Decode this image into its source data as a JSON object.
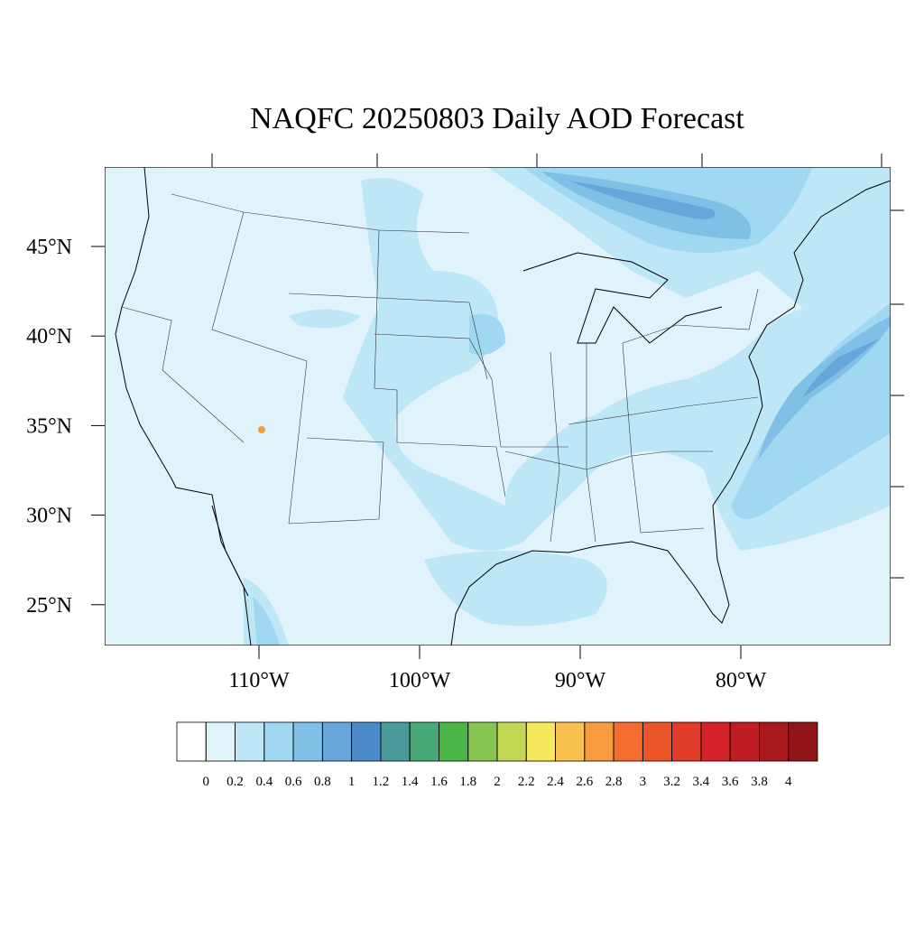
{
  "title": "NAQFC 20250803 Daily AOD Forecast",
  "lat_labels": [
    "45°N",
    "40°N",
    "35°N",
    "30°N",
    "25°N"
  ],
  "lon_labels": [
    "110°W",
    "100°W",
    "90°W",
    "80°W"
  ],
  "colorbar": {
    "levels": [
      0,
      0.2,
      0.4,
      0.6,
      0.8,
      1,
      1.2,
      1.4,
      1.6,
      1.8,
      2,
      2.2,
      2.4,
      2.6,
      2.8,
      3,
      3.2,
      3.4,
      3.6,
      3.8,
      4
    ],
    "colors": [
      "#ffffff",
      "#e0f3fb",
      "#bde6f7",
      "#a0d8f2",
      "#80bfe6",
      "#66a6db",
      "#4a8ac8",
      "#4a9a9a",
      "#48a878",
      "#4ab648",
      "#86c550",
      "#c3d654",
      "#f6e85c",
      "#f8c04c",
      "#f79a40",
      "#f46c30",
      "#ea5428",
      "#e03c28",
      "#d42228",
      "#c01c24",
      "#a8181c",
      "#901418"
    ]
  }
}
